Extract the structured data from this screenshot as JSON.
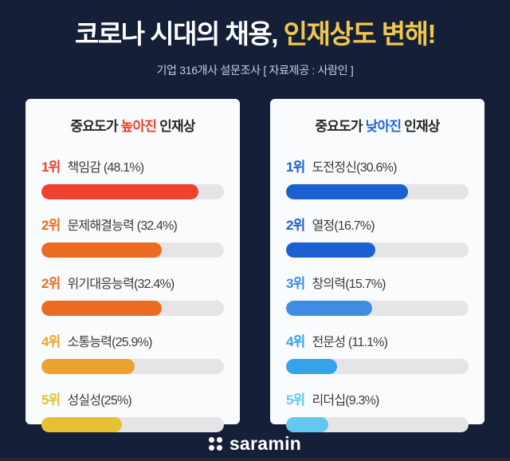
{
  "title": {
    "prefix": "코로나 시대의 채용, ",
    "highlight": "인재상도 변해!"
  },
  "subtitle": "기업 316개사 설문조사 [ 자료제공 : 사람인 ]",
  "colors": {
    "background": "#151F38",
    "title_highlight": "#F1C84E",
    "panel_background": "#FAFBFC",
    "bar_track": "#E5E5E7",
    "increase_accent": "#E8412C",
    "decrease_accent": "#2366DD",
    "footer_strip": "#24272F"
  },
  "panels": [
    {
      "heading": {
        "prefix": "중요도가 ",
        "highlight": "높아진",
        "suffix": " 인재상",
        "highlight_color": "#E8412C"
      },
      "rows": [
        {
          "rank": "1위",
          "label": "책임감 (48.1%)",
          "value": 48.1,
          "color": "#EE4130",
          "bar_pct": 86
        },
        {
          "rank": "2위",
          "label": "문제해결능력 (32.4%)",
          "value": 32.4,
          "color": "#EC6B22",
          "bar_pct": 66
        },
        {
          "rank": "2위",
          "label": "위기대응능력(32.4%)",
          "value": 32.4,
          "color": "#EC6B22",
          "bar_pct": 66
        },
        {
          "rank": "4위",
          "label": "소통능력(25.9%)",
          "value": 25.9,
          "color": "#ECA32D",
          "bar_pct": 51
        },
        {
          "rank": "5위",
          "label": "성실성(25%)",
          "value": 25.0,
          "color": "#E4C133",
          "bar_pct": 44
        }
      ]
    },
    {
      "heading": {
        "prefix": "중요도가 ",
        "highlight": "낮아진",
        "suffix": " 인재상",
        "highlight_color": "#2366DD"
      },
      "rows": [
        {
          "rank": "1위",
          "label": "도전정신(30.6%)",
          "value": 30.6,
          "color": "#1B5FD0",
          "bar_pct": 67
        },
        {
          "rank": "2위",
          "label": "열정(16.7%)",
          "value": 16.7,
          "color": "#1B5FD0",
          "bar_pct": 49
        },
        {
          "rank": "3위",
          "label": "창의력(15.7%)",
          "value": 15.7,
          "color": "#3F8CE2",
          "bar_pct": 47
        },
        {
          "rank": "4위",
          "label": "전문성 (11.1%)",
          "value": 11.1,
          "color": "#35A3E8",
          "bar_pct": 28
        },
        {
          "rank": "5위",
          "label": "리더십(9.3%)",
          "value": 9.3,
          "color": "#63C8F0",
          "bar_pct": 23
        }
      ]
    }
  ],
  "footer": {
    "logo_text": "saramin"
  },
  "chart_data": [
    {
      "type": "bar",
      "orientation": "horizontal",
      "title": "중요도가 높아진 인재상",
      "ranks": [
        "1위",
        "2위",
        "2위",
        "4위",
        "5위"
      ],
      "categories": [
        "책임감",
        "문제해결능력",
        "위기대응능력",
        "소통능력",
        "성실성"
      ],
      "values": [
        48.1,
        32.4,
        32.4,
        25.9,
        25.0
      ],
      "unit": "%",
      "legend_position": "none",
      "grid": false
    },
    {
      "type": "bar",
      "orientation": "horizontal",
      "title": "중요도가 낮아진 인재상",
      "ranks": [
        "1위",
        "2위",
        "3위",
        "4위",
        "5위"
      ],
      "categories": [
        "도전정신",
        "열정",
        "창의력",
        "전문성",
        "리더십"
      ],
      "values": [
        30.6,
        16.7,
        15.7,
        11.1,
        9.3
      ],
      "unit": "%",
      "legend_position": "none",
      "grid": false
    }
  ]
}
